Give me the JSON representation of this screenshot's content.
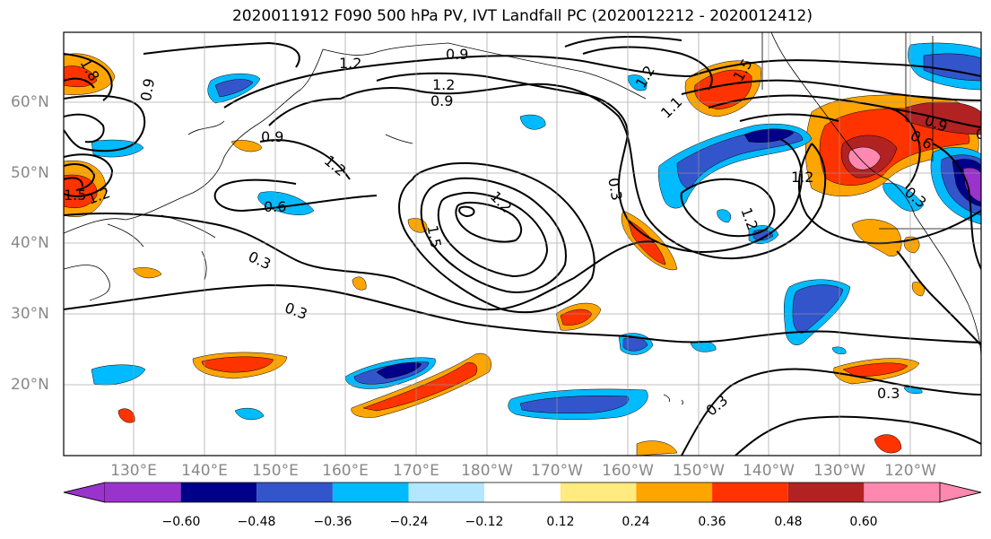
{
  "title": "2020011912 F090 500 hPa PV, IVT Landfall PC (2020012212 - 2020012412)",
  "lat_labels": [
    "60°N",
    "50°N",
    "40°N",
    "30°N",
    "20°N"
  ],
  "lon_labels": [
    "130°E",
    "140°E",
    "150°E",
    "160°E",
    "170°E",
    "180°W",
    "170°W",
    "160°W",
    "150°W",
    "140°W",
    "130°W",
    "120°W"
  ],
  "colorbar": {
    "labels": [
      "−0.60",
      "−0.48",
      "−0.36",
      "−0.24",
      "−0.12",
      "0.12",
      "0.24",
      "0.36",
      "0.48",
      "0.60"
    ],
    "colors": [
      "#9933cc",
      "#000088",
      "#3355cc",
      "#00bbff",
      "#b3e6ff",
      "#ffffff",
      "#ffeb80",
      "#ffa500",
      "#ff3300",
      "#b22222",
      "#ff88b0"
    ]
  },
  "contour_labels": [
    "1.2",
    "0.9",
    "0.9",
    "1.2",
    "0.9",
    "0.9",
    "0.6",
    "1.2",
    "0.3",
    "0.3",
    "1.5",
    "1.2",
    "0.3",
    "1.2",
    "1.2",
    "0.6",
    "0.3",
    "0.3",
    "0.3",
    "1.5",
    "1.2",
    "0.9",
    "1.5",
    "0.6",
    "1.1",
    "1.2",
    "1.8"
  ]
}
